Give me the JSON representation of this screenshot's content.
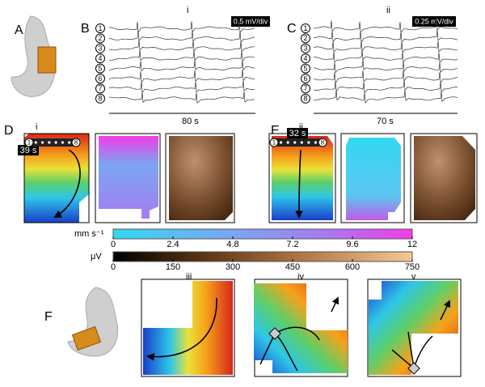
{
  "panel_labels": [
    "A",
    "B",
    "C",
    "D",
    "E",
    "F"
  ],
  "sublabels": [
    "i",
    "ii",
    "iii",
    "iv",
    "v"
  ],
  "channels": [
    "1",
    "2",
    "3",
    "4",
    "5",
    "6",
    "7",
    "8"
  ],
  "scale_bars": {
    "B_amplitude": "0.5 mV/div",
    "B_time": "80 s",
    "C_amplitude": "0.25 mV/div",
    "C_time": "70 s"
  },
  "time_labels": {
    "D": "39 s",
    "E": "32 s"
  },
  "colorbars": [
    {
      "label": "mm s⁻¹",
      "lim": [
        0,
        12
      ],
      "ticks": [
        0,
        2.4,
        4.8,
        7.2,
        9.6,
        12
      ]
    },
    {
      "label": "μV",
      "lim": [
        0,
        750
      ],
      "ticks": [
        0,
        150,
        300,
        450,
        600,
        750
      ]
    }
  ]
}
